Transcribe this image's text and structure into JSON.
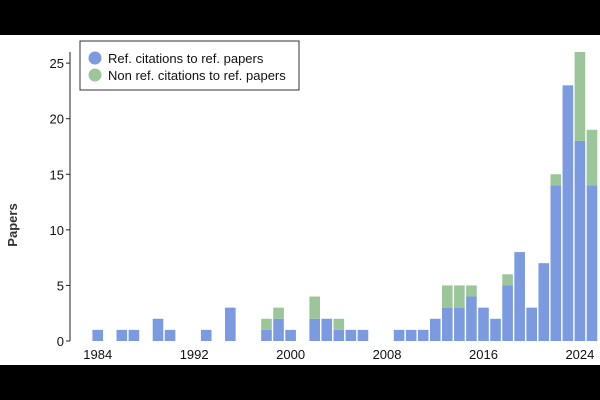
{
  "chart_data": {
    "type": "bar",
    "stacked": true,
    "xlabel": "",
    "ylabel": "Papers",
    "ylim": [
      0,
      26
    ],
    "yticks": [
      0,
      5,
      10,
      15,
      20,
      25
    ],
    "xticks": [
      "1984",
      "1992",
      "2000",
      "2008",
      "2016",
      "2024"
    ],
    "grid": false,
    "legend_position": "top-left",
    "x": [
      1983,
      1984,
      1985,
      1986,
      1987,
      1988,
      1989,
      1990,
      1991,
      1992,
      1993,
      1994,
      1995,
      1996,
      1997,
      1998,
      1999,
      2000,
      2001,
      2002,
      2003,
      2004,
      2005,
      2006,
      2007,
      2008,
      2009,
      2010,
      2011,
      2012,
      2013,
      2014,
      2015,
      2016,
      2017,
      2018,
      2019,
      2020,
      2021,
      2022,
      2023,
      2024,
      2025
    ],
    "series": [
      {
        "name": "Ref. citations to ref. papers",
        "color": "#7b9ae0",
        "values": [
          0,
          1,
          0,
          1,
          1,
          0,
          2,
          1,
          0,
          0,
          1,
          0,
          3,
          0,
          0,
          1,
          2,
          1,
          0,
          2,
          2,
          1,
          1,
          1,
          0,
          0,
          1,
          1,
          1,
          2,
          3,
          3,
          4,
          3,
          2,
          5,
          8,
          3,
          7,
          14,
          23,
          18,
          14
        ]
      },
      {
        "name": "Non ref. citations to ref. papers",
        "color": "#9cc59a",
        "values": [
          0,
          0,
          0,
          0,
          0,
          0,
          0,
          0,
          0,
          0,
          0,
          0,
          0,
          0,
          0,
          1,
          1,
          0,
          0,
          2,
          0,
          1,
          0,
          0,
          0,
          0,
          0,
          0,
          0,
          0,
          2,
          2,
          1,
          0,
          0,
          1,
          0,
          0,
          0,
          1,
          0,
          8,
          5
        ]
      }
    ]
  }
}
